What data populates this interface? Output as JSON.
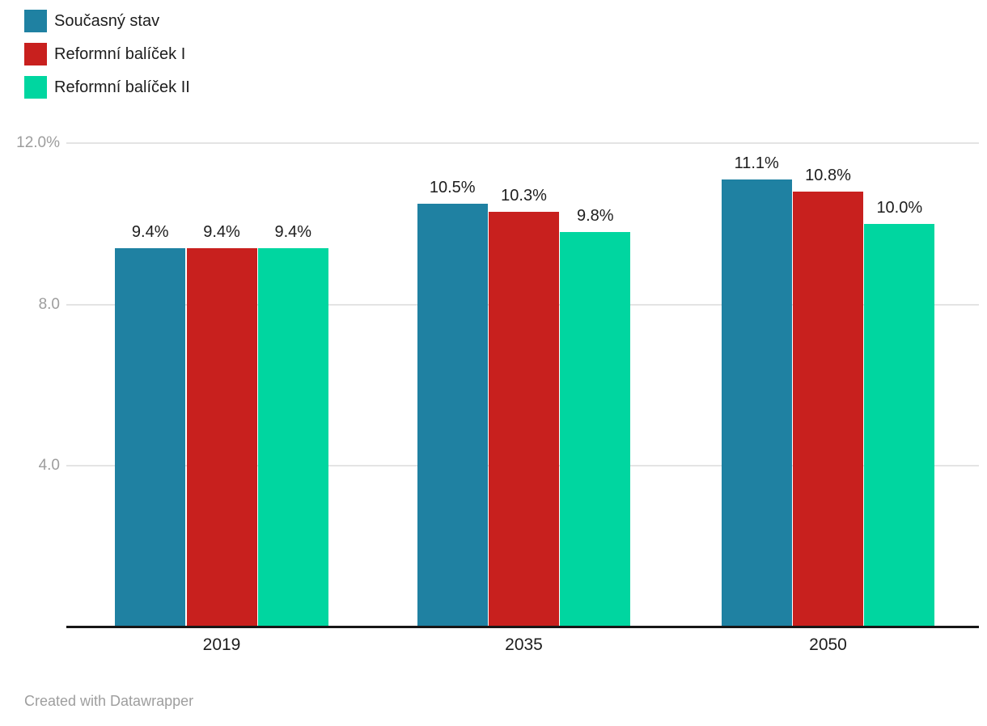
{
  "chart_data": {
    "type": "bar",
    "categories": [
      "2019",
      "2035",
      "2050"
    ],
    "series": [
      {
        "name": "Současný stav",
        "color": "#1f81a2",
        "values": [
          9.4,
          10.5,
          11.1
        ],
        "labels": [
          "9.4%",
          "10.5%",
          "11.1%"
        ]
      },
      {
        "name": "Reformní balíček I",
        "color": "#c8201e",
        "values": [
          9.4,
          10.3,
          10.8
        ],
        "labels": [
          "9.4%",
          "10.3%",
          "10.8%"
        ]
      },
      {
        "name": "Reformní balíček II",
        "color": "#00d6a0",
        "values": [
          9.4,
          9.8,
          10.0
        ],
        "labels": [
          "9.4%",
          "9.8%",
          "10.0%"
        ]
      }
    ],
    "yticks": [
      {
        "value": 12,
        "label": "12.0%"
      },
      {
        "value": 8,
        "label": "8.0"
      },
      {
        "value": 4,
        "label": "4.0"
      }
    ],
    "ylim": [
      0,
      12
    ],
    "grid": true,
    "legend_position": "top-left",
    "xlabel": "",
    "ylabel": "",
    "colors": {
      "gridline": "#e4e4e4",
      "axis_line": "#161616",
      "tick_text": "#9d9d9d",
      "label_text": "#1d1d1d"
    }
  },
  "footer": {
    "attribution": "Created with Datawrapper"
  }
}
